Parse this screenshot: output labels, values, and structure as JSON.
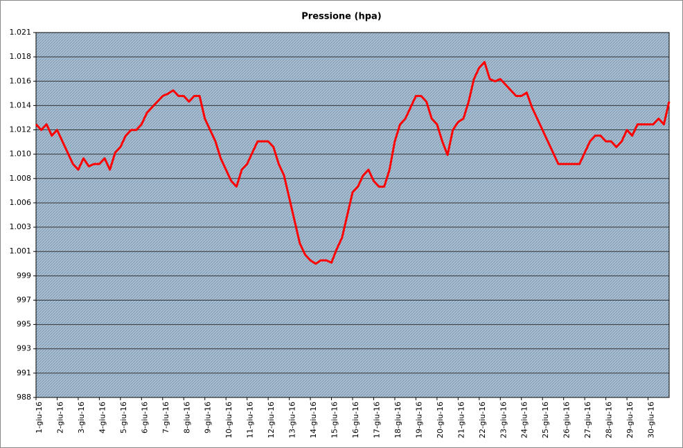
{
  "chart_data": {
    "type": "line",
    "title": "Pressione (hpa)",
    "x": [
      1,
      1.25,
      1.5,
      1.75,
      2,
      2.25,
      2.5,
      2.75,
      3,
      3.25,
      3.5,
      3.75,
      4,
      4.25,
      4.5,
      4.75,
      5,
      5.25,
      5.5,
      5.75,
      6,
      6.25,
      6.5,
      6.75,
      7,
      7.25,
      7.5,
      7.75,
      8,
      8.25,
      8.5,
      8.75,
      9,
      9.25,
      9.5,
      9.75,
      10,
      10.25,
      10.5,
      10.75,
      11,
      11.25,
      11.5,
      11.75,
      12,
      12.25,
      12.5,
      12.75,
      13,
      13.25,
      13.5,
      13.75,
      14,
      14.25,
      14.5,
      14.75,
      15,
      15.25,
      15.5,
      15.75,
      16,
      16.25,
      16.5,
      16.75,
      17,
      17.25,
      17.5,
      17.75,
      18,
      18.25,
      18.5,
      18.75,
      19,
      19.25,
      19.5,
      19.75,
      20,
      20.25,
      20.5,
      20.75,
      21,
      21.25,
      21.5,
      21.75,
      22,
      22.25,
      22.5,
      22.75,
      23,
      23.25,
      23.5,
      23.75,
      24,
      24.25,
      24.5,
      24.75,
      25,
      25.25,
      25.5,
      25.75,
      26,
      26.25,
      26.5,
      26.75,
      27,
      27.25,
      27.5,
      27.75,
      28,
      28.25,
      28.5,
      28.75,
      29,
      29.25,
      29.5,
      29.75,
      30,
      30.25,
      30.5,
      30.75,
      31
    ],
    "series": [
      {
        "name": "Pressione",
        "color": "#ff0000",
        "values": [
          1012.5,
          1012,
          1012.5,
          1011.5,
          1012,
          1011,
          1010,
          1009,
          1008.5,
          1009.5,
          1008.8,
          1009,
          1009,
          1009.5,
          1008.5,
          1010,
          1010.5,
          1011.5,
          1012,
          1012,
          1012.5,
          1013.5,
          1014,
          1014.5,
          1015,
          1015.2,
          1015.5,
          1015,
          1015,
          1014.5,
          1015,
          1015,
          1013,
          1012,
          1011,
          1009.5,
          1008.5,
          1007.5,
          1007,
          1008.5,
          1009,
          1010,
          1011,
          1011,
          1011,
          1010.5,
          1009,
          1008,
          1006,
          1004,
          1002,
          1001,
          1000.5,
          1000.2,
          1000.5,
          1000.5,
          1000.3,
          1001.5,
          1002.5,
          1004.5,
          1006.5,
          1007,
          1008,
          1008.5,
          1007.5,
          1007,
          1007,
          1008.5,
          1011,
          1012.5,
          1013,
          1014,
          1015,
          1015,
          1014.5,
          1013,
          1012.5,
          1011,
          1009.8,
          1012,
          1012.7,
          1013,
          1014.5,
          1016.5,
          1017.5,
          1018,
          1016.5,
          1016.3,
          1016.5,
          1016,
          1015.5,
          1015,
          1015,
          1015.3,
          1014,
          1013,
          1012,
          1011,
          1010,
          1009,
          1009,
          1009,
          1009,
          1009,
          1010,
          1011,
          1011.5,
          1011.5,
          1011,
          1011,
          1010.5,
          1011,
          1012,
          1011.5,
          1012.5,
          1012.5,
          1012.5,
          1012.5,
          1013,
          1012.5,
          1014.5
        ]
      }
    ],
    "xlim": [
      1,
      31
    ],
    "xticks": [
      {
        "value": 1,
        "label": "1-giu-16"
      },
      {
        "value": 2,
        "label": "2-giu-16"
      },
      {
        "value": 3,
        "label": "3-giu-16"
      },
      {
        "value": 4,
        "label": "4-giu-16"
      },
      {
        "value": 5,
        "label": "5-giu-16"
      },
      {
        "value": 6,
        "label": "6-giu-16"
      },
      {
        "value": 7,
        "label": "7-giu-16"
      },
      {
        "value": 8,
        "label": "8-giu-16"
      },
      {
        "value": 9,
        "label": "9-giu-16"
      },
      {
        "value": 10,
        "label": "10-giu-16"
      },
      {
        "value": 11,
        "label": "11-giu-16"
      },
      {
        "value": 12,
        "label": "12-giu-16"
      },
      {
        "value": 13,
        "label": "13-giu-16"
      },
      {
        "value": 14,
        "label": "14-giu-16"
      },
      {
        "value": 15,
        "label": "15-giu-16"
      },
      {
        "value": 16,
        "label": "16-giu-16"
      },
      {
        "value": 17,
        "label": "17-giu-16"
      },
      {
        "value": 18,
        "label": "18-giu-16"
      },
      {
        "value": 19,
        "label": "19-giu-16"
      },
      {
        "value": 20,
        "label": "20-giu-16"
      },
      {
        "value": 21,
        "label": "21-giu-16"
      },
      {
        "value": 22,
        "label": "22-giu-16"
      },
      {
        "value": 23,
        "label": "23-giu-16"
      },
      {
        "value": 24,
        "label": "24-giu-16"
      },
      {
        "value": 25,
        "label": "25-giu-16"
      },
      {
        "value": 26,
        "label": "26-giu-16"
      },
      {
        "value": 27,
        "label": "27-giu-16"
      },
      {
        "value": 28,
        "label": "28-giu-16"
      },
      {
        "value": 29,
        "label": "29-giu-16"
      },
      {
        "value": 30,
        "label": "30-giu-16"
      }
    ],
    "ylim": [
      988.4,
      1020.6
    ],
    "yticks": [
      {
        "value": 988.4,
        "label": "988"
      },
      {
        "value": 990.547,
        "label": "991"
      },
      {
        "value": 992.693,
        "label": "993"
      },
      {
        "value": 994.84,
        "label": "995"
      },
      {
        "value": 996.987,
        "label": "997"
      },
      {
        "value": 999.133,
        "label": "999"
      },
      {
        "value": 1001.28,
        "label": "1.001"
      },
      {
        "value": 1003.427,
        "label": "1.003"
      },
      {
        "value": 1005.573,
        "label": "1.006"
      },
      {
        "value": 1007.72,
        "label": "1.008"
      },
      {
        "value": 1009.867,
        "label": "1.010"
      },
      {
        "value": 1012.013,
        "label": "1.012"
      },
      {
        "value": 1014.16,
        "label": "1.014"
      },
      {
        "value": 1016.307,
        "label": "1.016"
      },
      {
        "value": 1018.453,
        "label": "1.018"
      },
      {
        "value": 1020.6,
        "label": "1.021"
      }
    ],
    "grid": true
  }
}
